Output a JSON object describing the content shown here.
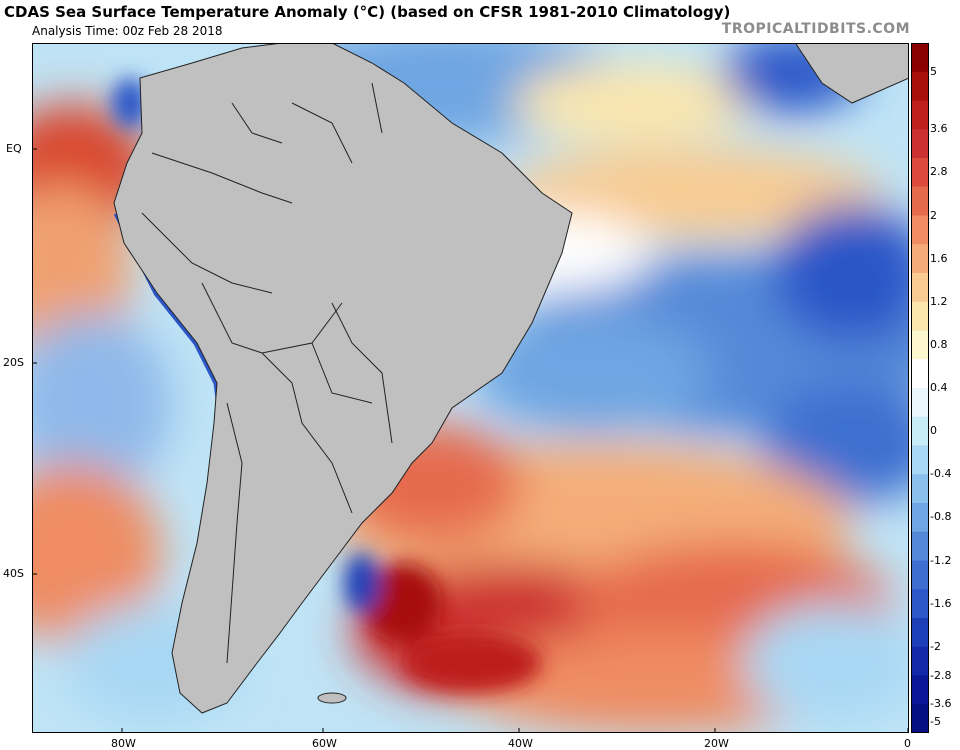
{
  "header": {
    "title": "CDAS Sea Surface Temperature Anomaly (°C) (based on CFSR 1981-2010 Climatology)",
    "analysis_time": "Analysis Time: 00z Feb 28 2018",
    "brand": "TROPICALTIDBITS.COM"
  },
  "map": {
    "region": "South America and adjacent oceans",
    "lat_labels": [
      "EQ",
      "20S",
      "40S"
    ],
    "lon_labels": [
      "80W",
      "60W",
      "40W",
      "20W",
      "0"
    ],
    "land_color": "#c0c0c0",
    "border_color": "#222222"
  },
  "colorbar": {
    "tick_labels": [
      "5",
      "3.6",
      "2.8",
      "2",
      "1.6",
      "1.2",
      "0.8",
      "0.4",
      "0",
      "-0.4",
      "-0.8",
      "-1.2",
      "-1.6",
      "-2",
      "-2.8",
      "-3.6",
      "-5"
    ],
    "colors": [
      "#8b0000",
      "#a8100e",
      "#bd1e1e",
      "#cd3030",
      "#db4a3c",
      "#e66a4e",
      "#ef8c62",
      "#f4ad78",
      "#f8cb92",
      "#fbe6ae",
      "#fdf7d0",
      "#ffffff",
      "#e9f7fd",
      "#c9ecf9",
      "#a9d8f4",
      "#8cc0ec",
      "#6ea5e2",
      "#5589d8",
      "#3e6fd0",
      "#2c57c8",
      "#1c3fb8",
      "#1228a8",
      "#0a1898",
      "#061080"
    ]
  }
}
